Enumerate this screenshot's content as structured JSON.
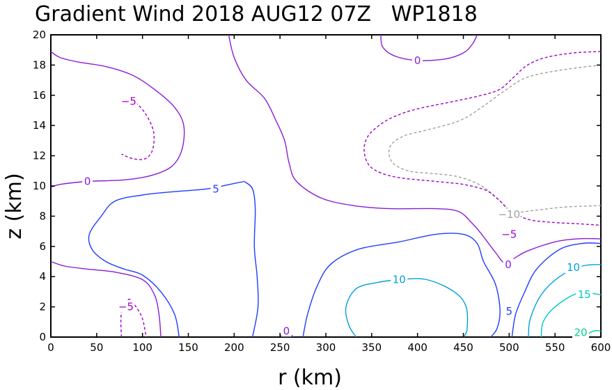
{
  "chart_data": {
    "type": "contour",
    "title": "Gradient Wind 2018 AUG12 07Z   WP1818",
    "xlabel": "r (km)",
    "ylabel": "z (km)",
    "xlim": [
      0,
      600
    ],
    "ylim": [
      0,
      20
    ],
    "xticks": [
      "0",
      "50",
      "100",
      "150",
      "200",
      "250",
      "300",
      "350",
      "400",
      "450",
      "500",
      "550",
      "600"
    ],
    "yticks": [
      "0",
      "2",
      "4",
      "6",
      "8",
      "10",
      "12",
      "14",
      "16",
      "18",
      "20"
    ],
    "colors": {
      "-10": "#a0a0a0",
      "-5": "#a000c8",
      "0": "#8a1bd6",
      "5": "#1e3cff",
      "10": "#00a0dc",
      "15": "#00c8c8",
      "20": "#00d28c"
    },
    "contours": [
      {
        "level": -10,
        "dash": true,
        "points": [
          [
            600,
            18
          ],
          [
            560,
            17.7
          ],
          [
            520,
            17.2
          ],
          [
            495,
            16.3
          ],
          [
            470,
            15.2
          ],
          [
            445,
            14.3
          ],
          [
            410,
            13.7
          ],
          [
            385,
            13.3
          ],
          [
            370,
            12.6
          ],
          [
            372,
            11.6
          ],
          [
            390,
            11
          ],
          [
            420,
            10.8
          ],
          [
            445,
            10.6
          ],
          [
            470,
            10
          ],
          [
            490,
            9
          ],
          [
            505,
            8.3
          ],
          [
            530,
            8.4
          ],
          [
            560,
            8.6
          ],
          [
            600,
            8.7
          ]
        ]
      },
      {
        "level": -5,
        "dash": true,
        "points": [
          [
            600,
            18.9
          ],
          [
            570,
            18.8
          ],
          [
            540,
            18.5
          ],
          [
            520,
            18
          ],
          [
            505,
            17.2
          ],
          [
            490,
            16.4
          ],
          [
            470,
            16
          ],
          [
            440,
            15.6
          ],
          [
            400,
            15.1
          ],
          [
            375,
            14.6
          ],
          [
            358,
            14
          ],
          [
            345,
            13.2
          ],
          [
            342,
            12.2
          ],
          [
            350,
            11.2
          ],
          [
            375,
            10.6
          ],
          [
            420,
            10.3
          ],
          [
            450,
            10.1
          ],
          [
            475,
            9.7
          ],
          [
            490,
            9
          ],
          [
            500,
            8.4
          ],
          [
            520,
            7.8
          ],
          [
            545,
            7.6
          ],
          [
            575,
            7.5
          ],
          [
            600,
            7.4
          ]
        ]
      },
      {
        "level": -5,
        "dash": true,
        "points": [
          [
            77,
            15.6
          ],
          [
            90,
            15.6
          ],
          [
            103,
            14.8
          ],
          [
            112,
            13.6
          ],
          [
            111,
            12.4
          ],
          [
            103,
            11.8
          ],
          [
            90,
            11.8
          ],
          [
            77,
            12.1
          ]
        ]
      },
      {
        "level": -5,
        "dash": true,
        "points": [
          [
            77,
            0
          ],
          [
            77,
            1.6
          ],
          [
            85,
            2.5
          ],
          [
            93,
            2
          ],
          [
            100,
            1.2
          ],
          [
            104,
            0
          ]
        ]
      },
      {
        "level": 0,
        "dash": false,
        "points": [
          [
            0,
            18.9
          ],
          [
            10,
            18.5
          ],
          [
            30,
            18.2
          ],
          [
            60,
            17.9
          ],
          [
            90,
            17.3
          ],
          [
            115,
            16.3
          ],
          [
            135,
            15.2
          ],
          [
            145,
            14
          ],
          [
            143,
            12.4
          ],
          [
            132,
            11.3
          ],
          [
            110,
            10.7
          ],
          [
            80,
            10.4
          ],
          [
            40,
            10.3
          ],
          [
            10,
            10.1
          ],
          [
            0,
            9.9
          ]
        ]
      },
      {
        "level": 0,
        "dash": false,
        "points": [
          [
            194,
            20
          ],
          [
            200,
            18.5
          ],
          [
            213,
            17
          ],
          [
            233,
            15.8
          ],
          [
            245,
            14.4
          ],
          [
            255,
            13
          ],
          [
            260,
            11.5
          ],
          [
            268,
            10.3
          ],
          [
            295,
            9.2
          ],
          [
            330,
            8.7
          ],
          [
            370,
            8.5
          ],
          [
            420,
            8.5
          ],
          [
            445,
            8.3
          ],
          [
            460,
            7.5
          ],
          [
            470,
            6.8
          ],
          [
            485,
            5.6
          ],
          [
            495,
            4.9
          ],
          [
            505,
            5.2
          ],
          [
            520,
            5.7
          ],
          [
            550,
            6.3
          ],
          [
            575,
            6.5
          ],
          [
            600,
            6.5
          ]
        ]
      },
      {
        "level": 0,
        "dash": false,
        "points": [
          [
            360,
            20
          ],
          [
            362,
            19.2
          ],
          [
            375,
            18.6
          ],
          [
            400,
            18.3
          ],
          [
            430,
            18.4
          ],
          [
            450,
            18.8
          ],
          [
            460,
            19.4
          ],
          [
            465,
            20
          ]
        ]
      },
      {
        "level": 0,
        "dash": false,
        "points": [
          [
            0,
            5
          ],
          [
            15,
            4.7
          ],
          [
            40,
            4.5
          ],
          [
            70,
            4.3
          ],
          [
            100,
            3.8
          ],
          [
            113,
            2.8
          ],
          [
            118,
            1.5
          ],
          [
            120,
            0
          ]
        ]
      },
      {
        "level": 0,
        "dash": false,
        "points": [
          [
            250,
            0
          ],
          [
            256,
            0.4
          ],
          [
            265,
            0
          ]
        ]
      },
      {
        "level": 5,
        "dash": false,
        "points": [
          [
            211,
            10.3
          ],
          [
            195,
            10.1
          ],
          [
            170,
            9.8
          ],
          [
            130,
            9.6
          ],
          [
            100,
            9.4
          ],
          [
            70,
            9
          ],
          [
            55,
            8
          ],
          [
            42,
            6.8
          ],
          [
            45,
            5.8
          ],
          [
            60,
            5
          ],
          [
            80,
            4.5
          ],
          [
            100,
            4.1
          ],
          [
            120,
            3
          ],
          [
            135,
            1.5
          ],
          [
            140,
            0
          ]
        ]
      },
      {
        "level": 5,
        "dash": false,
        "points": [
          [
            211,
            10.3
          ],
          [
            220,
            9.8
          ],
          [
            223,
            8.5
          ],
          [
            222,
            6
          ],
          [
            225,
            4
          ],
          [
            226,
            2
          ],
          [
            220,
            0
          ]
        ]
      },
      {
        "level": 5,
        "dash": false,
        "points": [
          [
            275,
            0
          ],
          [
            280,
            1.5
          ],
          [
            290,
            3.3
          ],
          [
            305,
            4.8
          ],
          [
            335,
            5.8
          ],
          [
            380,
            6.3
          ],
          [
            420,
            6.8
          ],
          [
            450,
            6.8
          ],
          [
            465,
            6.2
          ],
          [
            472,
            5
          ],
          [
            485,
            3.5
          ],
          [
            490,
            1.8
          ],
          [
            487,
            0.6
          ],
          [
            480,
            0
          ]
        ]
      },
      {
        "level": 5,
        "dash": false,
        "points": [
          [
            503,
            0
          ],
          [
            507,
            1.5
          ],
          [
            517,
            3
          ],
          [
            530,
            4.5
          ],
          [
            555,
            5.8
          ],
          [
            580,
            6.2
          ],
          [
            600,
            6.2
          ]
        ]
      },
      {
        "level": 10,
        "dash": false,
        "points": [
          [
            333,
            0
          ],
          [
            325,
            0.8
          ],
          [
            322,
            2
          ],
          [
            333,
            3.2
          ],
          [
            355,
            3.6
          ],
          [
            380,
            3.8
          ],
          [
            410,
            3.8
          ],
          [
            440,
            3
          ],
          [
            453,
            2
          ],
          [
            454,
            0.5
          ],
          [
            450,
            0
          ]
        ]
      },
      {
        "level": 10,
        "dash": false,
        "points": [
          [
            521,
            0
          ],
          [
            523,
            1.2
          ],
          [
            535,
            2.8
          ],
          [
            555,
            4
          ],
          [
            580,
            4.7
          ],
          [
            600,
            4.8
          ]
        ]
      },
      {
        "level": 15,
        "dash": false,
        "points": [
          [
            535,
            0
          ],
          [
            537,
            1
          ],
          [
            550,
            2
          ],
          [
            575,
            2.9
          ],
          [
            600,
            2.8
          ]
        ]
      },
      {
        "level": 20,
        "dash": false,
        "points": [
          [
            580,
            0
          ],
          [
            592,
            0.4
          ],
          [
            600,
            0.4
          ]
        ]
      }
    ],
    "labels": [
      {
        "text": "0",
        "x": 40,
        "y": 10.3,
        "level": 0
      },
      {
        "text": "5",
        "x": 180,
        "y": 9.8,
        "level": 5
      },
      {
        "text": "-5",
        "x": 85,
        "y": 15.6,
        "level": -5
      },
      {
        "text": "0",
        "x": 400,
        "y": 18.3,
        "level": 0
      },
      {
        "text": "-10",
        "x": 500,
        "y": 8.1,
        "level": -10
      },
      {
        "text": "-5",
        "x": 500,
        "y": 6.8,
        "level": -5
      },
      {
        "text": "0",
        "x": 499,
        "y": 4.8,
        "level": 0
      },
      {
        "text": "10",
        "x": 570,
        "y": 4.6,
        "level": 10
      },
      {
        "text": "15",
        "x": 582,
        "y": 2.8,
        "level": 15
      },
      {
        "text": "20",
        "x": 578,
        "y": 0.3,
        "level": 20
      },
      {
        "text": "10",
        "x": 380,
        "y": 3.8,
        "level": 10
      },
      {
        "text": "5",
        "x": 500,
        "y": 1.7,
        "level": 5
      },
      {
        "text": "-5",
        "x": 82,
        "y": 2.0,
        "level": -5
      },
      {
        "text": "0",
        "x": 257,
        "y": 0.4,
        "level": 0
      }
    ]
  }
}
